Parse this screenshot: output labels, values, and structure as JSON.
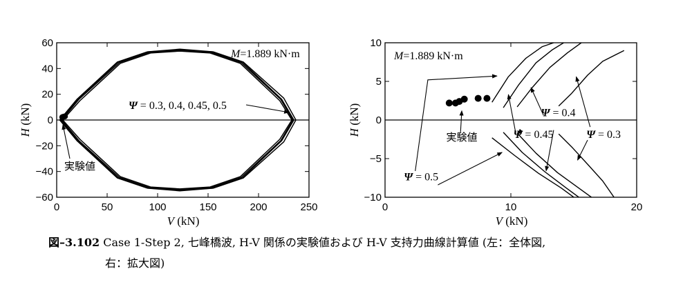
{
  "chart_data": [
    {
      "type": "line",
      "title": "",
      "xlabel_var": "V",
      "xlabel_unit": "(kN)",
      "ylabel_var": "H",
      "ylabel_unit": "(kN)",
      "xlim": [
        0,
        250
      ],
      "ylim": [
        -60,
        60
      ],
      "xticks": [
        "0",
        "50",
        "100",
        "150",
        "200",
        "250"
      ],
      "yticks": [
        "-60",
        "-40",
        "-20",
        "0",
        "20",
        "40",
        "60"
      ],
      "series_label": "Ψ = 0.3, 0.4, 0.45, 0.5",
      "moment_label": "M=1.889 kN·m",
      "experiment_label": "実験値",
      "envelopes": [
        {
          "name": "Ψ = 0.3",
          "points": [
            [
              3,
              0
            ],
            [
              20,
              16
            ],
            [
              60,
              45
            ],
            [
              90,
              53
            ],
            [
              122,
              55
            ],
            [
              155,
              53
            ],
            [
              185,
              45
            ],
            [
              225,
              17
            ],
            [
              237,
              0
            ],
            [
              225,
              -17
            ],
            [
              185,
              -45
            ],
            [
              155,
              -53
            ],
            [
              122,
              -55
            ],
            [
              90,
              -53
            ],
            [
              60,
              -45
            ],
            [
              20,
              -16
            ],
            [
              3,
              0
            ]
          ]
        },
        {
          "name": "Ψ = 0.4",
          "points": [
            [
              4,
              0
            ],
            [
              21,
              16
            ],
            [
              61,
              45
            ],
            [
              91,
              53
            ],
            [
              122,
              54.5
            ],
            [
              154,
              53
            ],
            [
              184,
              45
            ],
            [
              223,
              16
            ],
            [
              235,
              0
            ],
            [
              223,
              -16
            ],
            [
              184,
              -45
            ],
            [
              154,
              -53
            ],
            [
              122,
              -54.5
            ],
            [
              91,
              -53
            ],
            [
              61,
              -45
            ],
            [
              21,
              -16
            ],
            [
              4,
              0
            ]
          ]
        },
        {
          "name": "Ψ = 0.45",
          "points": [
            [
              5,
              0
            ],
            [
              22,
              16
            ],
            [
              62,
              44.5
            ],
            [
              92,
              52.5
            ],
            [
              122,
              54
            ],
            [
              153,
              52.5
            ],
            [
              183,
              44.5
            ],
            [
              222,
              16
            ],
            [
              234,
              0
            ],
            [
              222,
              -16
            ],
            [
              183,
              -44.5
            ],
            [
              153,
              -52.5
            ],
            [
              122,
              -54
            ],
            [
              92,
              -52.5
            ],
            [
              62,
              -44.5
            ],
            [
              22,
              -16
            ],
            [
              5,
              0
            ]
          ]
        },
        {
          "name": "Ψ = 0.5",
          "points": [
            [
              6,
              0
            ],
            [
              23,
              15
            ],
            [
              63,
              44
            ],
            [
              93,
              52
            ],
            [
              122,
              53.5
            ],
            [
              152,
              52
            ],
            [
              182,
              44
            ],
            [
              221,
              15
            ],
            [
              233,
              0
            ],
            [
              221,
              -15
            ],
            [
              182,
              -44
            ],
            [
              152,
              -52
            ],
            [
              122,
              -53.5
            ],
            [
              93,
              -52
            ],
            [
              63,
              -44
            ],
            [
              23,
              -15
            ],
            [
              6,
              0
            ]
          ]
        }
      ],
      "experiment_points": [
        [
          5.5,
          2.2
        ],
        [
          6.0,
          2.3
        ],
        [
          6.5,
          2.5
        ],
        [
          7.5,
          2.7
        ],
        [
          8.2,
          2.8
        ]
      ]
    },
    {
      "type": "line",
      "title": "",
      "xlabel_var": "V",
      "xlabel_unit": "(kN)",
      "ylabel_var": "H",
      "ylabel_unit": "(kN)",
      "xlim": [
        0,
        20
      ],
      "ylim": [
        -10,
        10
      ],
      "xticks": [
        "0",
        "10",
        "20"
      ],
      "yticks": [
        "-10",
        "-5",
        "0",
        "5",
        "10"
      ],
      "moment_label": "M=1.889 kN·m",
      "experiment_label": "実験値",
      "envelopes": [
        {
          "name": "Ψ = 0.5",
          "upper": [
            [
              8.5,
              2.3
            ],
            [
              9.8,
              5.6
            ],
            [
              11.2,
              8.0
            ],
            [
              12.5,
              9.5
            ],
            [
              13.4,
              10
            ]
          ],
          "lower": [
            [
              8.5,
              -2.3
            ],
            [
              10.3,
              -4.6
            ],
            [
              12.2,
              -6.9
            ],
            [
              14.0,
              -8.8
            ],
            [
              15.0,
              -10
            ]
          ]
        },
        {
          "name": "Ψ = 0.45",
          "upper": [
            [
              9.4,
              1.6
            ],
            [
              10.6,
              4.5
            ],
            [
              12.0,
              7.4
            ],
            [
              13.3,
              9.1
            ],
            [
              14.2,
              10
            ]
          ],
          "lower": [
            [
              9.4,
              -1.6
            ],
            [
              10.9,
              -4.2
            ],
            [
              12.7,
              -6.7
            ],
            [
              14.4,
              -8.8
            ],
            [
              15.4,
              -10
            ]
          ]
        },
        {
          "name": "Ψ = 0.4",
          "upper": [
            [
              10.5,
              1.7
            ],
            [
              11.7,
              4.2
            ],
            [
              13.1,
              6.8
            ],
            [
              14.5,
              8.7
            ],
            [
              15.6,
              10
            ]
          ],
          "lower": [
            [
              10.5,
              -1.7
            ],
            [
              12.0,
              -4.3
            ],
            [
              13.7,
              -6.8
            ],
            [
              15.3,
              -8.7
            ],
            [
              16.4,
              -10
            ]
          ]
        },
        {
          "name": "Ψ = 0.3",
          "upper": [
            [
              13.8,
              1.8
            ],
            [
              14.8,
              3.4
            ],
            [
              16.1,
              5.8
            ],
            [
              17.3,
              7.6
            ],
            [
              19.0,
              9.0
            ]
          ],
          "lower": [
            [
              13.8,
              -1.8
            ],
            [
              14.9,
              -3.6
            ],
            [
              16.2,
              -5.9
            ],
            [
              17.3,
              -7.9
            ],
            [
              18.2,
              -10
            ]
          ]
        }
      ],
      "experiment_points": [
        [
          5.1,
          2.2
        ],
        [
          5.6,
          2.2
        ],
        [
          5.9,
          2.4
        ],
        [
          6.3,
          2.7
        ],
        [
          7.4,
          2.8
        ],
        [
          8.1,
          2.8
        ]
      ],
      "annotations": [
        {
          "text": "Ψ = 0.5",
          "label_at": [
            1.5,
            -7.8
          ],
          "arrows_to": [
            [
              3.3,
              5.2
            ],
            [
              9.3,
              -4.2
            ]
          ]
        },
        {
          "text": "Ψ = 0.45",
          "label_at": [
            10.2,
            -2.3
          ],
          "arrows_to": [
            [
              9.9,
              3.9
            ],
            [
              10.6,
              -1.8
            ]
          ]
        },
        {
          "text": "Ψ = 0.4",
          "label_at": [
            12.4,
            0.5
          ],
          "arrows_to": [
            [
              11.5,
              4.5
            ],
            [
              12.9,
              -6.5
            ]
          ]
        },
        {
          "text": "Ψ = 0.3",
          "label_at": [
            16.0,
            -2.3
          ],
          "arrows_to": [
            [
              15.2,
              5.7
            ],
            [
              15.4,
              -5.3
            ]
          ]
        },
        {
          "text": "実験値",
          "label_at": [
            6.1,
            -2.7
          ],
          "arrows_to": [
            [
              6.1,
              1.1
            ]
          ]
        }
      ]
    }
  ],
  "caption": {
    "number": "図–3.102",
    "line1": "Case 1-Step 2, 七峰橋波, H-V 関係の実験値および H-V 支持力曲線計算値 (左：全体図,",
    "line2": "右：拡大図)"
  }
}
